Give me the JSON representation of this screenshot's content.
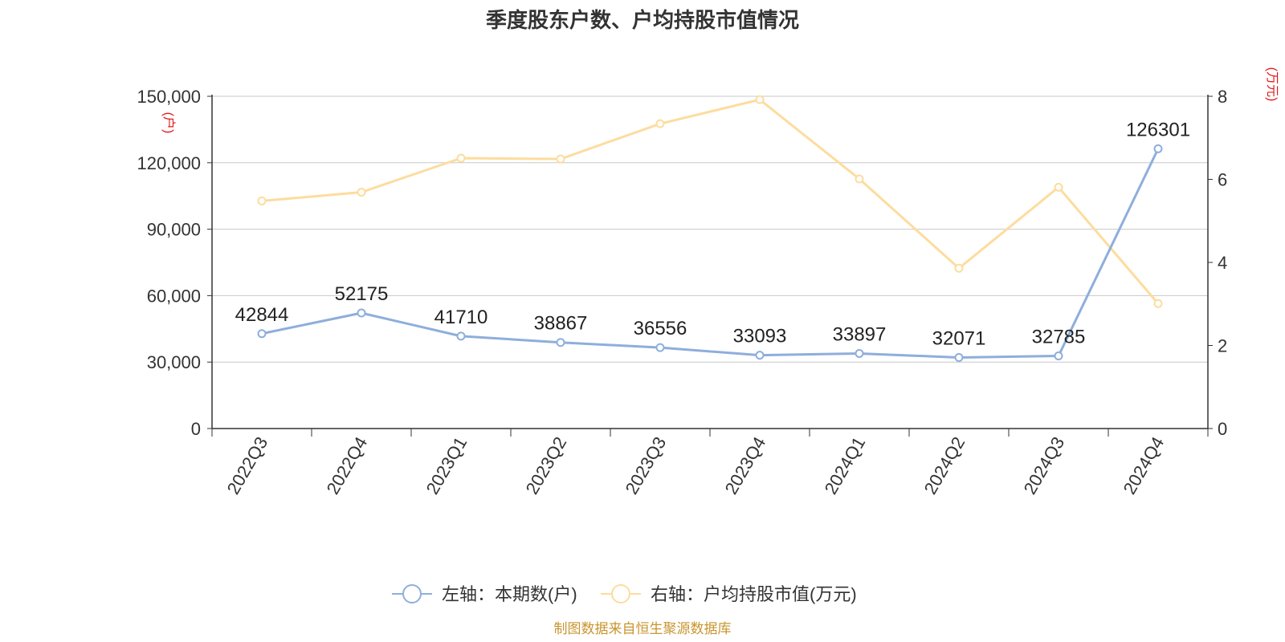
{
  "chart_data": {
    "type": "line",
    "title": "季度股东户数、户均持股市值情况",
    "categories": [
      "2022Q3",
      "2022Q4",
      "2023Q1",
      "2023Q2",
      "2023Q3",
      "2023Q4",
      "2024Q1",
      "2024Q2",
      "2024Q3",
      "2024Q4"
    ],
    "left_axis": {
      "unit": "(户)",
      "range": [
        0,
        150000
      ],
      "ticks": [
        0,
        30000,
        60000,
        90000,
        120000,
        150000
      ],
      "tick_labels": [
        "0",
        "30,000",
        "60,000",
        "90,000",
        "120,000",
        "150,000"
      ]
    },
    "right_axis": {
      "unit": "(万元)",
      "range": [
        0,
        8
      ],
      "ticks": [
        0,
        2,
        4,
        6,
        8
      ],
      "tick_labels": [
        "0",
        "2",
        "4",
        "6",
        "8"
      ]
    },
    "grid": true,
    "legend_position": "bottom-center",
    "series": [
      {
        "name": "左轴：本期数(户)",
        "axis": "left",
        "color": "#8eaedc",
        "values": [
          42844,
          52175,
          41710,
          38867,
          36556,
          33093,
          33897,
          32071,
          32785,
          126301
        ],
        "labels": [
          "42844",
          "52175",
          "41710",
          "38867",
          "36556",
          "33093",
          "33897",
          "32071",
          "32785",
          "126301"
        ]
      },
      {
        "name": "右轴：户均持股市值(万元)",
        "axis": "right",
        "color": "#fddc9e",
        "values": [
          5.48,
          5.69,
          6.51,
          6.49,
          7.34,
          7.92,
          6.01,
          3.86,
          5.81,
          3.01
        ]
      }
    ],
    "source": "制图数据来自恒生聚源数据库"
  }
}
